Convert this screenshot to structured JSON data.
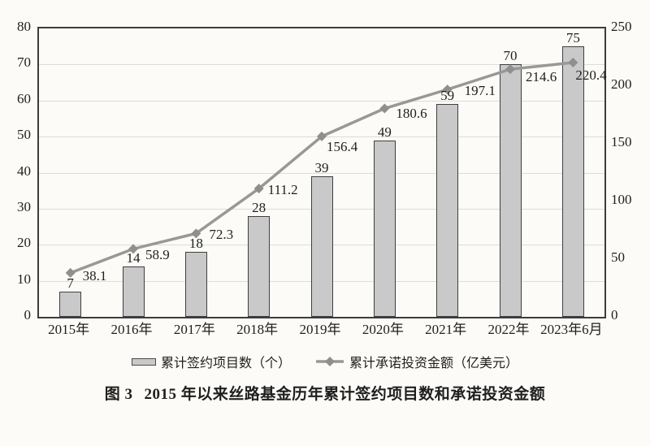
{
  "figure": {
    "caption_prefix": "图 3",
    "caption_title": "2015 年以来丝路基金历年累计签约项目数和承诺投资金额"
  },
  "legend": [
    {
      "swatch": "bar-swatch",
      "label": "累计签约项目数（个）"
    },
    {
      "swatch": "line-diamond-swatch",
      "label": "累计承诺投资金额（亿美元）"
    }
  ],
  "colors": {
    "background": "#fcfbf7",
    "bar_fill": "#c9c9c9",
    "bar_border": "#3f3f3f",
    "line": "#989898",
    "marker": "#8f8f8f",
    "gridline": "#dcdcda",
    "axis_border": "#3c3c3c",
    "text": "#1f1f1f"
  },
  "chart_data": {
    "type": "bar",
    "subtype": "combo-bar-line-dual-axis",
    "title": "图 3 2015 年以来丝路基金历年累计签约项目数和承诺投资金额",
    "categories": [
      "2015年",
      "2016年",
      "2017年",
      "2018年",
      "2019年",
      "2020年",
      "2021年",
      "2022年",
      "2023年6月"
    ],
    "series": [
      {
        "name": "累计签约项目数（个）",
        "type": "bar",
        "axis": "left",
        "values": [
          7,
          14,
          18,
          28,
          39,
          49,
          59,
          70,
          75
        ]
      },
      {
        "name": "累计承诺投资金额（亿美元）",
        "type": "line",
        "axis": "right",
        "values": [
          38.1,
          58.9,
          72.3,
          111.2,
          156.4,
          180.6,
          197.1,
          214.6,
          220.4
        ]
      }
    ],
    "left_axis": {
      "min": 0,
      "max": 80,
      "step": 10,
      "ticks": [
        0,
        10,
        20,
        30,
        40,
        50,
        60,
        70,
        80
      ]
    },
    "right_axis": {
      "min": 0,
      "max": 250,
      "step": 50,
      "ticks": [
        0,
        50,
        100,
        150,
        200,
        250
      ]
    },
    "grid": "horizontal",
    "legend_position": "bottom",
    "data_labels": true
  }
}
